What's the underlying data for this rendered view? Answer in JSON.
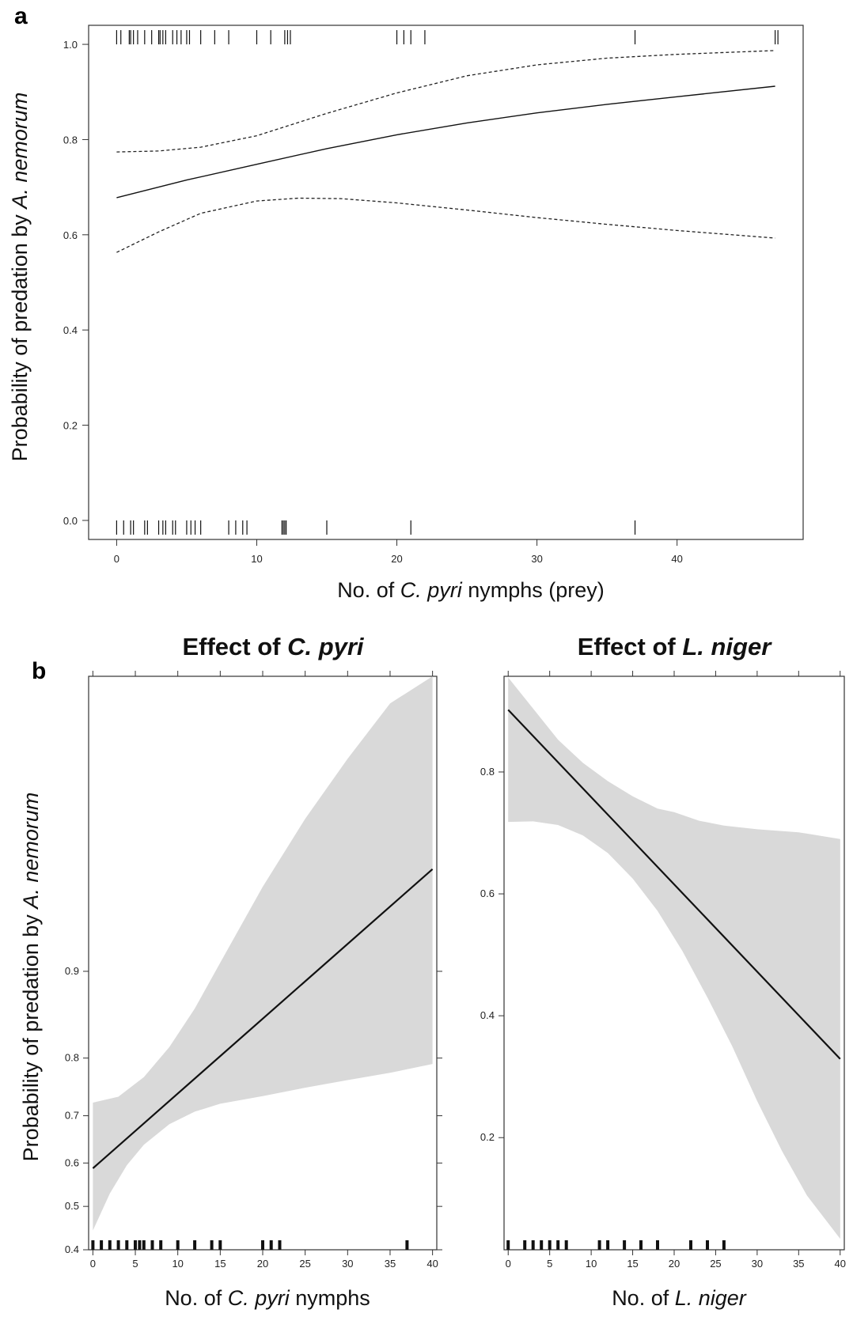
{
  "chart_data": [
    {
      "panel": "a",
      "type": "line",
      "xlabel": {
        "pre": "No. of ",
        "it": "C. pyri",
        "post": " nymphs (prey)"
      },
      "ylabel": {
        "pre": "Probability of predation by ",
        "it": "A. nemorum",
        "post": ""
      },
      "xlim": [
        -2,
        49
      ],
      "ylim": [
        -0.04,
        1.04
      ],
      "xticks": [
        0,
        10,
        20,
        30,
        40
      ],
      "yticks": [
        0.0,
        0.2,
        0.4,
        0.6,
        0.8,
        1.0
      ],
      "ytick_labels": [
        "0.0",
        "0.2",
        "0.4",
        "0.6",
        "0.8",
        "1.0"
      ],
      "series": [
        {
          "role": "fit",
          "style": "solid",
          "x": [
            0,
            5,
            10,
            15,
            20,
            25,
            30,
            35,
            40,
            47
          ],
          "y": [
            0.678,
            0.715,
            0.748,
            0.781,
            0.81,
            0.835,
            0.856,
            0.874,
            0.89,
            0.912
          ]
        },
        {
          "role": "upper",
          "style": "dashed",
          "x": [
            0,
            3,
            6,
            10,
            15,
            20,
            25,
            30,
            35,
            40,
            47
          ],
          "y": [
            0.774,
            0.776,
            0.784,
            0.808,
            0.855,
            0.898,
            0.934,
            0.957,
            0.971,
            0.979,
            0.987
          ]
        },
        {
          "role": "lower",
          "style": "dashed",
          "x": [
            0,
            3,
            6,
            10,
            13,
            16,
            20,
            25,
            30,
            35,
            40,
            47
          ],
          "y": [
            0.563,
            0.606,
            0.645,
            0.671,
            0.677,
            0.676,
            0.667,
            0.652,
            0.636,
            0.622,
            0.609,
            0.593
          ]
        }
      ],
      "rug_top": [
        0,
        0.3,
        0.9,
        1,
        1.2,
        1.5,
        2,
        2.5,
        3,
        3.1,
        3.3,
        3.5,
        4,
        4.3,
        4.6,
        5,
        5.2,
        6,
        7,
        8,
        10,
        11,
        12,
        12.2,
        12.4,
        20,
        20.5,
        21,
        22,
        37,
        47,
        47.2
      ],
      "rug_bottom": [
        0,
        0.5,
        1,
        1.2,
        2,
        2.2,
        3,
        3.3,
        3.5,
        4,
        4.2,
        5,
        5.3,
        5.6,
        6,
        8,
        8.5,
        9,
        9.3,
        11.8,
        11.9,
        12,
        12.1,
        15,
        21,
        37
      ]
    },
    {
      "panel": "b-left",
      "type": "line",
      "title": {
        "pre": "Effect of ",
        "it": "C. pyri",
        "post": ""
      },
      "xlabel": {
        "pre": "No. of ",
        "it": "C. pyri",
        "post": " nymphs"
      },
      "ylabel": {
        "pre": "Probability of predation by ",
        "it": "A. nemorum",
        "post": ""
      },
      "xlim": [
        -0.5,
        40.5
      ],
      "y_scale": "logit",
      "ylim": [
        0.4,
        0.993
      ],
      "xticks": [
        0,
        5,
        10,
        15,
        20,
        25,
        30,
        35,
        40
      ],
      "yticks": [
        0.4,
        0.5,
        0.6,
        0.7,
        0.8,
        0.9
      ],
      "ytick_labels": [
        "0.4",
        "0.5",
        "0.6",
        "0.7",
        "0.8",
        "0.9"
      ],
      "fit": {
        "x": [
          0,
          40
        ],
        "y": [
          0.588,
          0.959
        ]
      },
      "band_upper": {
        "x": [
          0,
          3,
          6,
          9,
          12,
          15,
          20,
          25,
          30,
          35,
          40
        ],
        "y": [
          0.725,
          0.736,
          0.77,
          0.816,
          0.864,
          0.907,
          0.952,
          0.974,
          0.985,
          0.991,
          0.993
        ]
      },
      "band_lower": {
        "x": [
          0,
          2,
          4,
          6,
          9,
          12,
          15,
          20,
          25,
          30,
          35,
          40
        ],
        "y": [
          0.444,
          0.53,
          0.595,
          0.64,
          0.683,
          0.708,
          0.723,
          0.737,
          0.752,
          0.765,
          0.777,
          0.791
        ]
      },
      "rug": [
        0,
        1,
        2,
        3,
        4,
        5,
        5.5,
        6,
        7,
        8,
        10,
        12,
        14,
        15,
        20,
        21,
        22,
        37
      ]
    },
    {
      "panel": "b-right",
      "type": "line",
      "title": {
        "pre": "Effect of ",
        "it": "L. niger",
        "post": ""
      },
      "xlabel": {
        "pre": "No. of ",
        "it": "L. niger",
        "post": ""
      },
      "xlim": [
        -0.5,
        40.5
      ],
      "ylim": [
        0.016,
        0.957
      ],
      "xticks": [
        0,
        5,
        10,
        15,
        20,
        25,
        30,
        35,
        40
      ],
      "yticks": [
        0.2,
        0.4,
        0.6,
        0.8
      ],
      "ytick_labels": [
        "0.2",
        "0.4",
        "0.6",
        "0.8"
      ],
      "fit": {
        "x": [
          0,
          40
        ],
        "y": [
          0.902,
          0.329
        ]
      },
      "band_upper": {
        "x": [
          0,
          3,
          6,
          9,
          12,
          15,
          18,
          20,
          23,
          26,
          30,
          35,
          40
        ],
        "y": [
          0.955,
          0.904,
          0.853,
          0.815,
          0.785,
          0.76,
          0.74,
          0.734,
          0.72,
          0.712,
          0.706,
          0.701,
          0.69
        ]
      },
      "band_lower": {
        "x": [
          0,
          3,
          6,
          9,
          12,
          15,
          18,
          21,
          24,
          27,
          30,
          33,
          36,
          40
        ],
        "y": [
          0.718,
          0.719,
          0.713,
          0.696,
          0.667,
          0.625,
          0.572,
          0.506,
          0.43,
          0.35,
          0.26,
          0.178,
          0.105,
          0.034
        ]
      },
      "rug": [
        0,
        2,
        3,
        4,
        5,
        6,
        7,
        11,
        12,
        14,
        16,
        18,
        22,
        24,
        26
      ]
    }
  ],
  "panel_letters": {
    "a": "a",
    "b": "b"
  }
}
